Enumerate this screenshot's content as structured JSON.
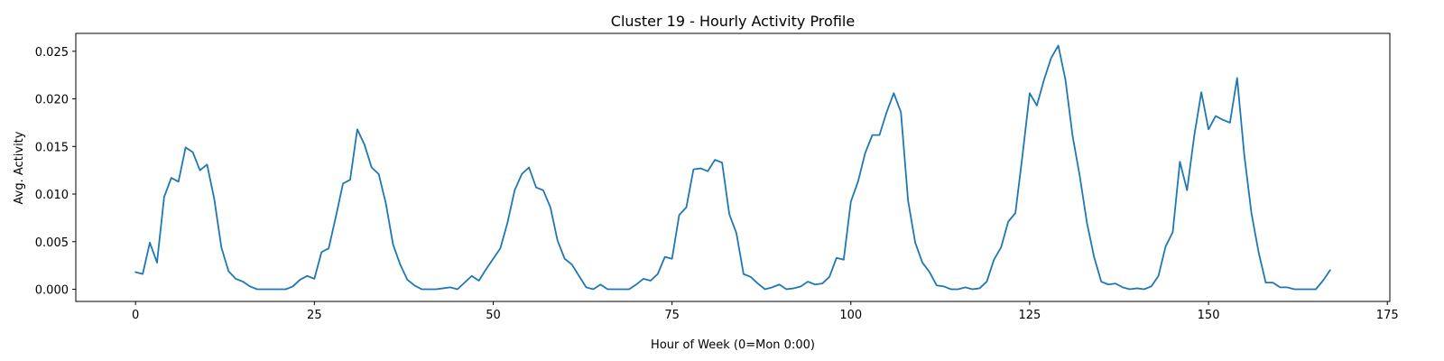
{
  "chart_data": {
    "type": "line",
    "title": "Cluster 19 - Hourly Activity Profile",
    "xlabel": "Hour of Week (0=Mon 0:00)",
    "ylabel": "Avg. Activity",
    "xlim": [
      -8.35,
      175.35
    ],
    "ylim": [
      -0.00128,
      0.02688
    ],
    "xticks": [
      0,
      25,
      50,
      75,
      100,
      125,
      150,
      175
    ],
    "yticks": [
      0.0,
      0.005,
      0.01,
      0.015,
      0.02,
      0.025
    ],
    "ytick_labels": [
      "0.000",
      "0.005",
      "0.010",
      "0.015",
      "0.020",
      "0.025"
    ],
    "grid": false,
    "series": [
      {
        "color": "#1f77b4",
        "y": [
          0.0018,
          0.0016,
          0.0049,
          0.0028,
          0.0097,
          0.0117,
          0.0113,
          0.0149,
          0.0144,
          0.0125,
          0.0131,
          0.0095,
          0.0044,
          0.0019,
          0.0011,
          0.0008,
          0.0003,
          0.0,
          0.0,
          0.0,
          0.0,
          0.0,
          0.0003,
          0.001,
          0.0014,
          0.0011,
          0.0039,
          0.0043,
          0.0076,
          0.0111,
          0.0115,
          0.0168,
          0.0152,
          0.0128,
          0.0121,
          0.009,
          0.0047,
          0.0026,
          0.001,
          0.0004,
          0.0,
          0.0,
          0.0,
          0.0001,
          0.0002,
          0.0,
          0.0007,
          0.0014,
          0.0009,
          0.0021,
          0.0032,
          0.0043,
          0.007,
          0.0104,
          0.0121,
          0.0128,
          0.0107,
          0.0104,
          0.0086,
          0.0051,
          0.0032,
          0.0026,
          0.0014,
          0.0002,
          0.0,
          0.0005,
          0.0,
          0.0,
          0.0,
          0.0,
          0.0005,
          0.0011,
          0.0009,
          0.0016,
          0.0034,
          0.0032,
          0.0078,
          0.0086,
          0.0126,
          0.0127,
          0.0124,
          0.0136,
          0.0133,
          0.0079,
          0.0059,
          0.0016,
          0.0013,
          0.0006,
          0.0,
          0.0002,
          0.0005,
          0.0,
          0.0001,
          0.0003,
          0.0008,
          0.0005,
          0.0006,
          0.0013,
          0.0033,
          0.0031,
          0.0092,
          0.0113,
          0.0143,
          0.0162,
          0.0162,
          0.0186,
          0.0206,
          0.0186,
          0.0093,
          0.0049,
          0.0028,
          0.0018,
          0.0004,
          0.0003,
          0.0,
          0.0,
          0.0002,
          0.0,
          0.0001,
          0.0008,
          0.0031,
          0.0044,
          0.0071,
          0.008,
          0.0141,
          0.0206,
          0.0193,
          0.022,
          0.0243,
          0.0256,
          0.022,
          0.0161,
          0.0119,
          0.007,
          0.0034,
          0.0008,
          0.0005,
          0.0006,
          0.0002,
          0.0,
          0.0001,
          0.0,
          0.0003,
          0.0014,
          0.0045,
          0.006,
          0.0134,
          0.0104,
          0.0161,
          0.0207,
          0.0168,
          0.0182,
          0.0178,
          0.0175,
          0.0222,
          0.0141,
          0.008,
          0.0039,
          0.0007,
          0.0007,
          0.0002,
          0.0002,
          0.0,
          0.0,
          0.0,
          0.0,
          0.0009,
          0.002
        ]
      }
    ]
  }
}
